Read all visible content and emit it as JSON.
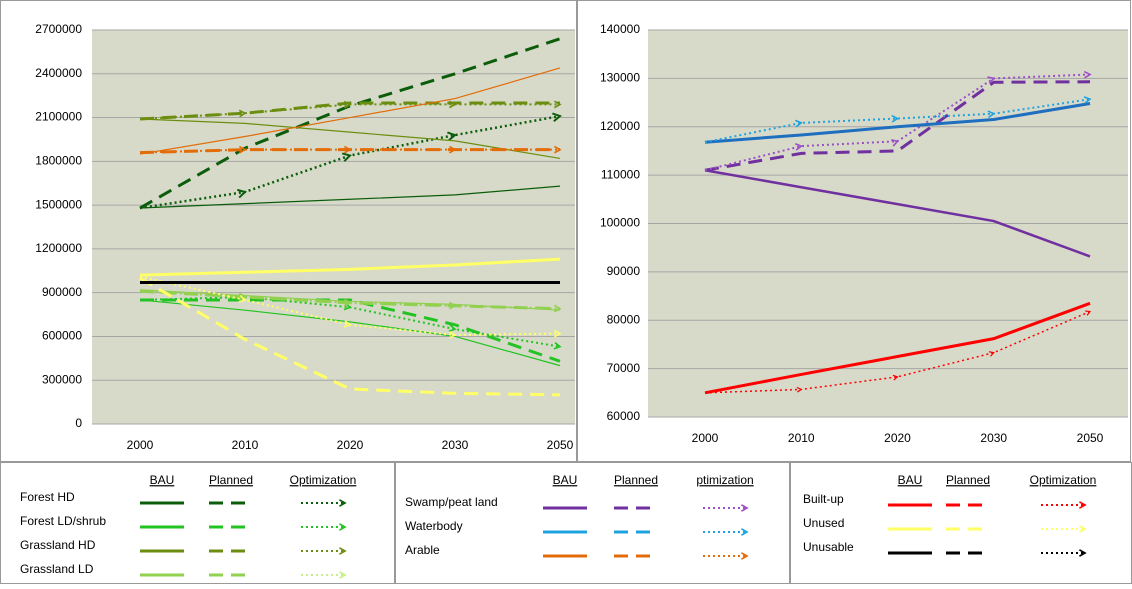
{
  "chart_data": [
    {
      "type": "line",
      "categories": [
        "2000",
        "2010",
        "2020",
        "2030",
        "2050"
      ],
      "ylim": [
        0,
        2700000
      ],
      "yticks": [
        0,
        300000,
        600000,
        900000,
        1200000,
        1500000,
        1800000,
        2100000,
        2400000,
        2700000
      ],
      "grid": true,
      "series": [
        {
          "name": "Forest HD",
          "scenario": "BAU",
          "color": "#0b5d0b",
          "line_width": 1.2,
          "values": [
            1480000,
            1510000,
            1540000,
            1570000,
            1630000
          ]
        },
        {
          "name": "Forest HD",
          "scenario": "Planned",
          "color": "#0b5d0b",
          "line_width": 3,
          "values": [
            1480000,
            1890000,
            2180000,
            2400000,
            2640000
          ]
        },
        {
          "name": "Forest HD",
          "scenario": "Optimization",
          "color": "#0b5d0b",
          "line_width": 2.5,
          "values": [
            1480000,
            1590000,
            1840000,
            1980000,
            2110000
          ]
        },
        {
          "name": "Forest LD/shrub",
          "scenario": "BAU",
          "color": "#22c322",
          "line_width": 1.2,
          "values": [
            850000,
            780000,
            700000,
            600000,
            400000
          ]
        },
        {
          "name": "Forest LD/shrub",
          "scenario": "Planned",
          "color": "#22c322",
          "line_width": 3,
          "values": [
            850000,
            850000,
            850000,
            680000,
            430000
          ]
        },
        {
          "name": "Forest LD/shrub",
          "scenario": "Optimization",
          "color": "#22c322",
          "line_width": 2,
          "values": [
            850000,
            870000,
            800000,
            650000,
            530000
          ]
        },
        {
          "name": "Grassland HD",
          "scenario": "BAU",
          "color": "#6b8e10",
          "line_width": 1.2,
          "values": [
            2090000,
            2060000,
            2000000,
            1940000,
            1820000
          ]
        },
        {
          "name": "Grassland HD",
          "scenario": "Planned",
          "color": "#6b8e10",
          "line_width": 3,
          "values": [
            2090000,
            2130000,
            2200000,
            2200000,
            2200000
          ]
        },
        {
          "name": "Grassland HD",
          "scenario": "Optimization",
          "color": "#6b8e10",
          "line_width": 2,
          "values": [
            2090000,
            2130000,
            2190000,
            2190000,
            2190000
          ]
        },
        {
          "name": "Grassland LD",
          "scenario": "BAU",
          "color": "#92d050",
          "line_width": 1.2,
          "values": [
            920000,
            880000,
            840000,
            820000,
            780000
          ]
        },
        {
          "name": "Grassland LD",
          "scenario": "Planned",
          "color": "#92d050",
          "line_width": 3,
          "values": [
            910000,
            870000,
            830000,
            810000,
            790000
          ]
        },
        {
          "name": "Grassland LD",
          "scenario": "Optimization",
          "color": "#92d050",
          "line_width": 2,
          "values": [
            910000,
            870000,
            830000,
            810000,
            790000
          ]
        },
        {
          "name": "Arable",
          "scenario": "BAU",
          "color": "#e36c09",
          "line_width": 1.2,
          "values": [
            1850000,
            1970000,
            2100000,
            2230000,
            2440000
          ]
        },
        {
          "name": "Arable",
          "scenario": "Planned",
          "color": "#e36c09",
          "line_width": 3,
          "values": [
            1860000,
            1880000,
            1880000,
            1880000,
            1880000
          ]
        },
        {
          "name": "Arable",
          "scenario": "Optimization",
          "color": "#e36c09",
          "line_width": 2,
          "values": [
            1860000,
            1880000,
            1880000,
            1880000,
            1880000
          ]
        },
        {
          "name": "Unused",
          "scenario": "BAU",
          "color": "#ffff66",
          "line_width": 3,
          "values": [
            1020000,
            1040000,
            1060000,
            1090000,
            1130000
          ]
        },
        {
          "name": "Unused",
          "scenario": "Planned",
          "color": "#ffff66",
          "line_width": 3,
          "values": [
            1000000,
            580000,
            240000,
            210000,
            200000
          ]
        },
        {
          "name": "Unused",
          "scenario": "Optimization",
          "color": "#ffff66",
          "line_width": 2,
          "values": [
            1010000,
            850000,
            680000,
            610000,
            620000
          ]
        },
        {
          "name": "Unusable",
          "scenario": "BAU",
          "color": "#000000",
          "line_width": 3,
          "values": [
            970000,
            970000,
            970000,
            970000,
            970000
          ]
        }
      ]
    },
    {
      "type": "line",
      "categories": [
        "2000",
        "2010",
        "2020",
        "2030",
        "2050"
      ],
      "ylim": [
        60000,
        140000
      ],
      "yticks": [
        60000,
        70000,
        80000,
        90000,
        100000,
        110000,
        120000,
        130000,
        140000
      ],
      "grid": true,
      "series": [
        {
          "name": "Swamp/peat land",
          "scenario": "BAU",
          "color": "#7030a0",
          "line_width": 2.5,
          "values": [
            111000,
            107500,
            104000,
            100500,
            93200
          ]
        },
        {
          "name": "Swamp/peat land",
          "scenario": "Planned",
          "color": "#7030a0",
          "line_width": 3,
          "values": [
            111000,
            114500,
            115000,
            129200,
            129300
          ]
        },
        {
          "name": "Swamp/peat land",
          "scenario": "Optimization",
          "color": "#9b4fc8",
          "line_width": 2,
          "values": [
            111000,
            116000,
            117000,
            130000,
            130800
          ]
        },
        {
          "name": "Waterbody",
          "scenario": "BAU",
          "color": "#1f6fc0",
          "line_width": 3,
          "values": [
            116800,
            118300,
            120000,
            121500,
            124800
          ]
        },
        {
          "name": "Waterbody",
          "scenario": "Optimization",
          "color": "#1fa3e0",
          "line_width": 2,
          "values": [
            116800,
            120800,
            121700,
            122700,
            125700
          ]
        },
        {
          "name": "Built-up",
          "scenario": "BAU",
          "color": "#ff0000",
          "line_width": 3,
          "values": [
            65000,
            68800,
            72500,
            76200,
            83500
          ]
        },
        {
          "name": "Built-up",
          "scenario": "Optimization",
          "color": "#ff0000",
          "line_width": 1.5,
          "values": [
            65000,
            65700,
            68300,
            73300,
            81800
          ]
        }
      ]
    }
  ],
  "legend": {
    "groups": [
      {
        "headers": [
          "BAU",
          "Planned",
          "Optimization"
        ],
        "items": [
          {
            "name": "Forest HD",
            "colors": [
              "#0b5d0b",
              "#0b5d0b",
              "#0b5d0b"
            ]
          },
          {
            "name": "Forest LD/shrub",
            "colors": [
              "#22c322",
              "#22c322",
              "#22c322"
            ]
          },
          {
            "name": "Grassland HD",
            "colors": [
              "#6b8e10",
              "#6b8e10",
              "#6b8e10"
            ]
          },
          {
            "name": "Grassland LD",
            "colors": [
              "#92d050",
              "#92d050",
              "#c8f08a"
            ]
          }
        ]
      },
      {
        "headers": [
          "BAU",
          "Planned",
          "ptimization"
        ],
        "items": [
          {
            "name": "Swamp/peat land",
            "colors": [
              "#7030a0",
              "#7030a0",
              "#9b4fc8"
            ]
          },
          {
            "name": "Waterbody",
            "colors": [
              "#1fa3e0",
              "#1fa3e0",
              "#1fa3e0"
            ]
          },
          {
            "name": "Arable",
            "colors": [
              "#e36c09",
              "#e36c09",
              "#e36c09"
            ]
          }
        ]
      },
      {
        "headers": [
          "BAU",
          "Planned",
          "Optimization"
        ],
        "items": [
          {
            "name": "Built-up",
            "colors": [
              "#ff0000",
              "#ff0000",
              "#ff0000"
            ]
          },
          {
            "name": "Unused",
            "colors": [
              "#ffff66",
              "#ffff66",
              "#ffff66"
            ]
          },
          {
            "name": "Unusable",
            "colors": [
              "#000000",
              "#000000",
              "#000000"
            ]
          }
        ]
      }
    ]
  }
}
